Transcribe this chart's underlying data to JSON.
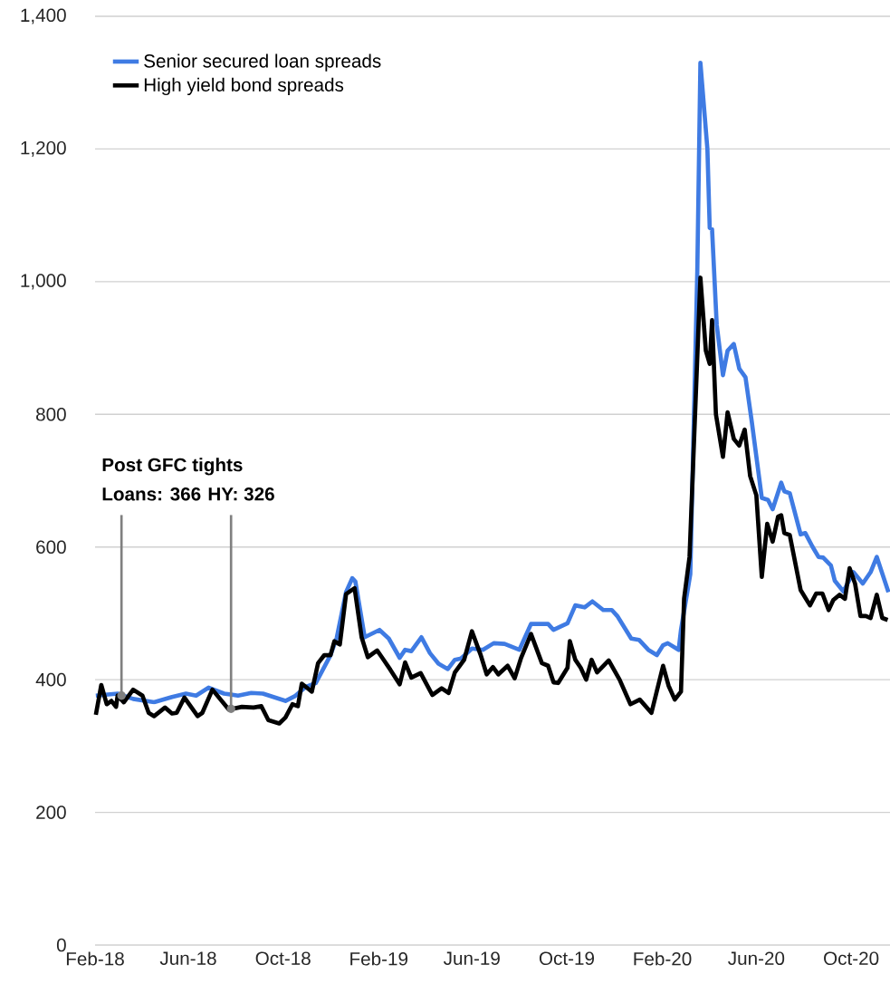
{
  "chart_data": {
    "type": "line",
    "xlim": [
      "2018-02-01",
      "2020-11-20"
    ],
    "ylim": [
      0,
      1400
    ],
    "xticks": [
      {
        "value": "2018-02-01",
        "label": "Feb-18"
      },
      {
        "value": "2018-06-01",
        "label": "Jun-18"
      },
      {
        "value": "2018-10-01",
        "label": "Oct-18"
      },
      {
        "value": "2019-02-01",
        "label": "Feb-19"
      },
      {
        "value": "2019-06-01",
        "label": "Jun-19"
      },
      {
        "value": "2019-10-01",
        "label": "Oct-19"
      },
      {
        "value": "2020-02-01",
        "label": "Feb-20"
      },
      {
        "value": "2020-06-01",
        "label": "Jun-20"
      },
      {
        "value": "2020-10-01",
        "label": "Oct-20"
      }
    ],
    "yticks": [
      {
        "value": 0,
        "label": "0"
      },
      {
        "value": 200,
        "label": "200"
      },
      {
        "value": 400,
        "label": "400"
      },
      {
        "value": 600,
        "label": "600"
      },
      {
        "value": 800,
        "label": "800"
      },
      {
        "value": 1000,
        "label": "1,000"
      },
      {
        "value": 1200,
        "label": "1,200"
      },
      {
        "value": 1400,
        "label": "1,400"
      }
    ],
    "grid": "y",
    "legend": "top left",
    "marker": "none",
    "line_style": "solid",
    "series": [
      {
        "name": "Senior secured loan spreads",
        "color": "#3f7be3",
        "x": [
          "2018-02-02",
          "2018-03-02",
          "2018-03-22",
          "2018-04-18",
          "2018-05-11",
          "2018-05-29",
          "2018-06-11",
          "2018-06-27",
          "2018-07-17",
          "2018-08-04",
          "2018-08-21",
          "2018-09-05",
          "2018-10-04",
          "2018-10-16",
          "2018-10-30",
          "2018-11-12",
          "2018-12-01",
          "2018-12-09",
          "2018-12-21",
          "2018-12-29",
          "2019-01-02",
          "2019-01-14",
          "2019-02-02",
          "2019-02-14",
          "2019-02-28",
          "2019-03-07",
          "2019-03-15",
          "2019-03-28",
          "2019-04-08",
          "2019-04-19",
          "2019-05-01",
          "2019-05-10",
          "2019-05-18",
          "2019-06-01",
          "2019-06-15",
          "2019-06-29",
          "2019-07-13",
          "2019-08-01",
          "2019-08-16",
          "2019-09-07",
          "2019-09-14",
          "2019-10-02",
          "2019-10-12",
          "2019-10-24",
          "2019-11-03",
          "2019-11-17",
          "2019-11-28",
          "2019-12-05",
          "2019-12-23",
          "2020-01-02",
          "2020-01-14",
          "2020-01-25",
          "2020-02-02",
          "2020-02-08",
          "2020-02-22",
          "2020-02-25",
          "2020-03-08",
          "2020-03-17",
          "2020-03-21",
          "2020-03-30",
          "2020-04-02",
          "2020-04-05",
          "2020-04-11",
          "2020-04-19",
          "2020-04-25",
          "2020-05-03",
          "2020-05-10",
          "2020-05-18",
          "2020-05-26",
          "2020-06-08",
          "2020-06-16",
          "2020-06-22",
          "2020-07-03",
          "2020-07-07",
          "2020-07-14",
          "2020-07-28",
          "2020-08-03",
          "2020-08-12",
          "2020-08-20",
          "2020-08-26",
          "2020-09-05",
          "2020-09-10",
          "2020-09-21",
          "2020-10-04",
          "2020-10-16",
          "2020-10-26",
          "2020-11-03",
          "2020-11-18"
        ],
        "values": [
          376,
          379,
          371,
          366,
          374,
          379,
          376,
          388,
          379,
          376,
          380,
          379,
          368,
          375,
          389,
          395,
          437,
          463,
          532,
          553,
          548,
          464,
          475,
          462,
          433,
          445,
          443,
          464,
          440,
          424,
          416,
          430,
          432,
          447,
          445,
          455,
          454,
          445,
          484,
          484,
          475,
          485,
          512,
          509,
          518,
          505,
          505,
          496,
          462,
          460,
          445,
          437,
          452,
          455,
          445,
          475,
          559,
          1015,
          1330,
          1200,
          1081,
          1079,
          935,
          859,
          896,
          906,
          869,
          856,
          790,
          674,
          671,
          657,
          697,
          684,
          681,
          619,
          621,
          601,
          585,
          584,
          572,
          549,
          533,
          562,
          545,
          562,
          585,
          532
        ]
      },
      {
        "name": "High yield bond spreads",
        "color": "#000000",
        "x": [
          "2018-02-02",
          "2018-02-09",
          "2018-02-16",
          "2018-02-22",
          "2018-02-28",
          "2018-03-02",
          "2018-03-10",
          "2018-03-22",
          "2018-04-03",
          "2018-04-11",
          "2018-04-18",
          "2018-05-02",
          "2018-05-11",
          "2018-05-17",
          "2018-05-27",
          "2018-06-13",
          "2018-06-19",
          "2018-07-02",
          "2018-07-23",
          "2018-08-09",
          "2018-08-24",
          "2018-09-03",
          "2018-09-12",
          "2018-09-26",
          "2018-10-04",
          "2018-10-13",
          "2018-10-20",
          "2018-10-25",
          "2018-11-07",
          "2018-11-15",
          "2018-11-23",
          "2018-12-01",
          "2018-12-06",
          "2018-12-13",
          "2018-12-21",
          "2019-01-01",
          "2019-01-10",
          "2019-01-18",
          "2019-01-30",
          "2019-02-05",
          "2019-02-16",
          "2019-02-28",
          "2019-03-07",
          "2019-03-15",
          "2019-03-27",
          "2019-04-11",
          "2019-04-23",
          "2019-05-02",
          "2019-05-10",
          "2019-05-22",
          "2019-06-01",
          "2019-06-12",
          "2019-06-20",
          "2019-06-28",
          "2019-07-05",
          "2019-07-17",
          "2019-07-26",
          "2019-08-03",
          "2019-08-16",
          "2019-08-30",
          "2019-09-07",
          "2019-09-14",
          "2019-09-20",
          "2019-10-02",
          "2019-10-05",
          "2019-10-12",
          "2019-10-19",
          "2019-10-26",
          "2019-11-02",
          "2019-11-09",
          "2019-11-24",
          "2019-12-08",
          "2019-12-22",
          "2020-01-03",
          "2020-01-18",
          "2020-02-02",
          "2020-02-09",
          "2020-02-17",
          "2020-02-25",
          "2020-02-29",
          "2020-03-07",
          "2020-03-21",
          "2020-03-28",
          "2020-04-02",
          "2020-04-05",
          "2020-04-10",
          "2020-04-19",
          "2020-04-25",
          "2020-05-03",
          "2020-05-10",
          "2020-05-17",
          "2020-05-24",
          "2020-06-01",
          "2020-06-08",
          "2020-06-15",
          "2020-06-22",
          "2020-06-29",
          "2020-07-03",
          "2020-07-07",
          "2020-07-14",
          "2020-07-28",
          "2020-08-09",
          "2020-08-17",
          "2020-08-25",
          "2020-09-02",
          "2020-09-08",
          "2020-09-16",
          "2020-09-23",
          "2020-09-29",
          "2020-10-06",
          "2020-10-13",
          "2020-10-20",
          "2020-10-26",
          "2020-11-03",
          "2020-11-10",
          "2020-11-17"
        ],
        "values": [
          347,
          392,
          363,
          368,
          359,
          376,
          366,
          385,
          376,
          350,
          345,
          358,
          349,
          350,
          373,
          345,
          350,
          385,
          355,
          359,
          358,
          360,
          339,
          334,
          343,
          363,
          360,
          394,
          382,
          425,
          437,
          437,
          458,
          453,
          529,
          538,
          464,
          434,
          444,
          434,
          415,
          393,
          426,
          403,
          410,
          377,
          387,
          380,
          411,
          430,
          473,
          438,
          408,
          419,
          408,
          421,
          402,
          432,
          469,
          425,
          421,
          396,
          395,
          418,
          458,
          430,
          418,
          400,
          430,
          411,
          429,
          400,
          363,
          370,
          350,
          421,
          391,
          370,
          382,
          522,
          585,
          1006,
          896,
          876,
          942,
          800,
          736,
          803,
          763,
          753,
          777,
          707,
          678,
          555,
          635,
          608,
          646,
          648,
          621,
          618,
          535,
          512,
          530,
          530,
          505,
          520,
          528,
          522,
          568,
          545,
          496,
          496,
          493,
          528,
          493,
          490
        ]
      }
    ],
    "annotations": [
      "Post GFC tights",
      {
        "text": "Loans: 366",
        "x": "2018-03-07",
        "y": 376
      },
      {
        "text": "HY: 326",
        "x": "2018-07-26",
        "y": 356
      }
    ]
  }
}
